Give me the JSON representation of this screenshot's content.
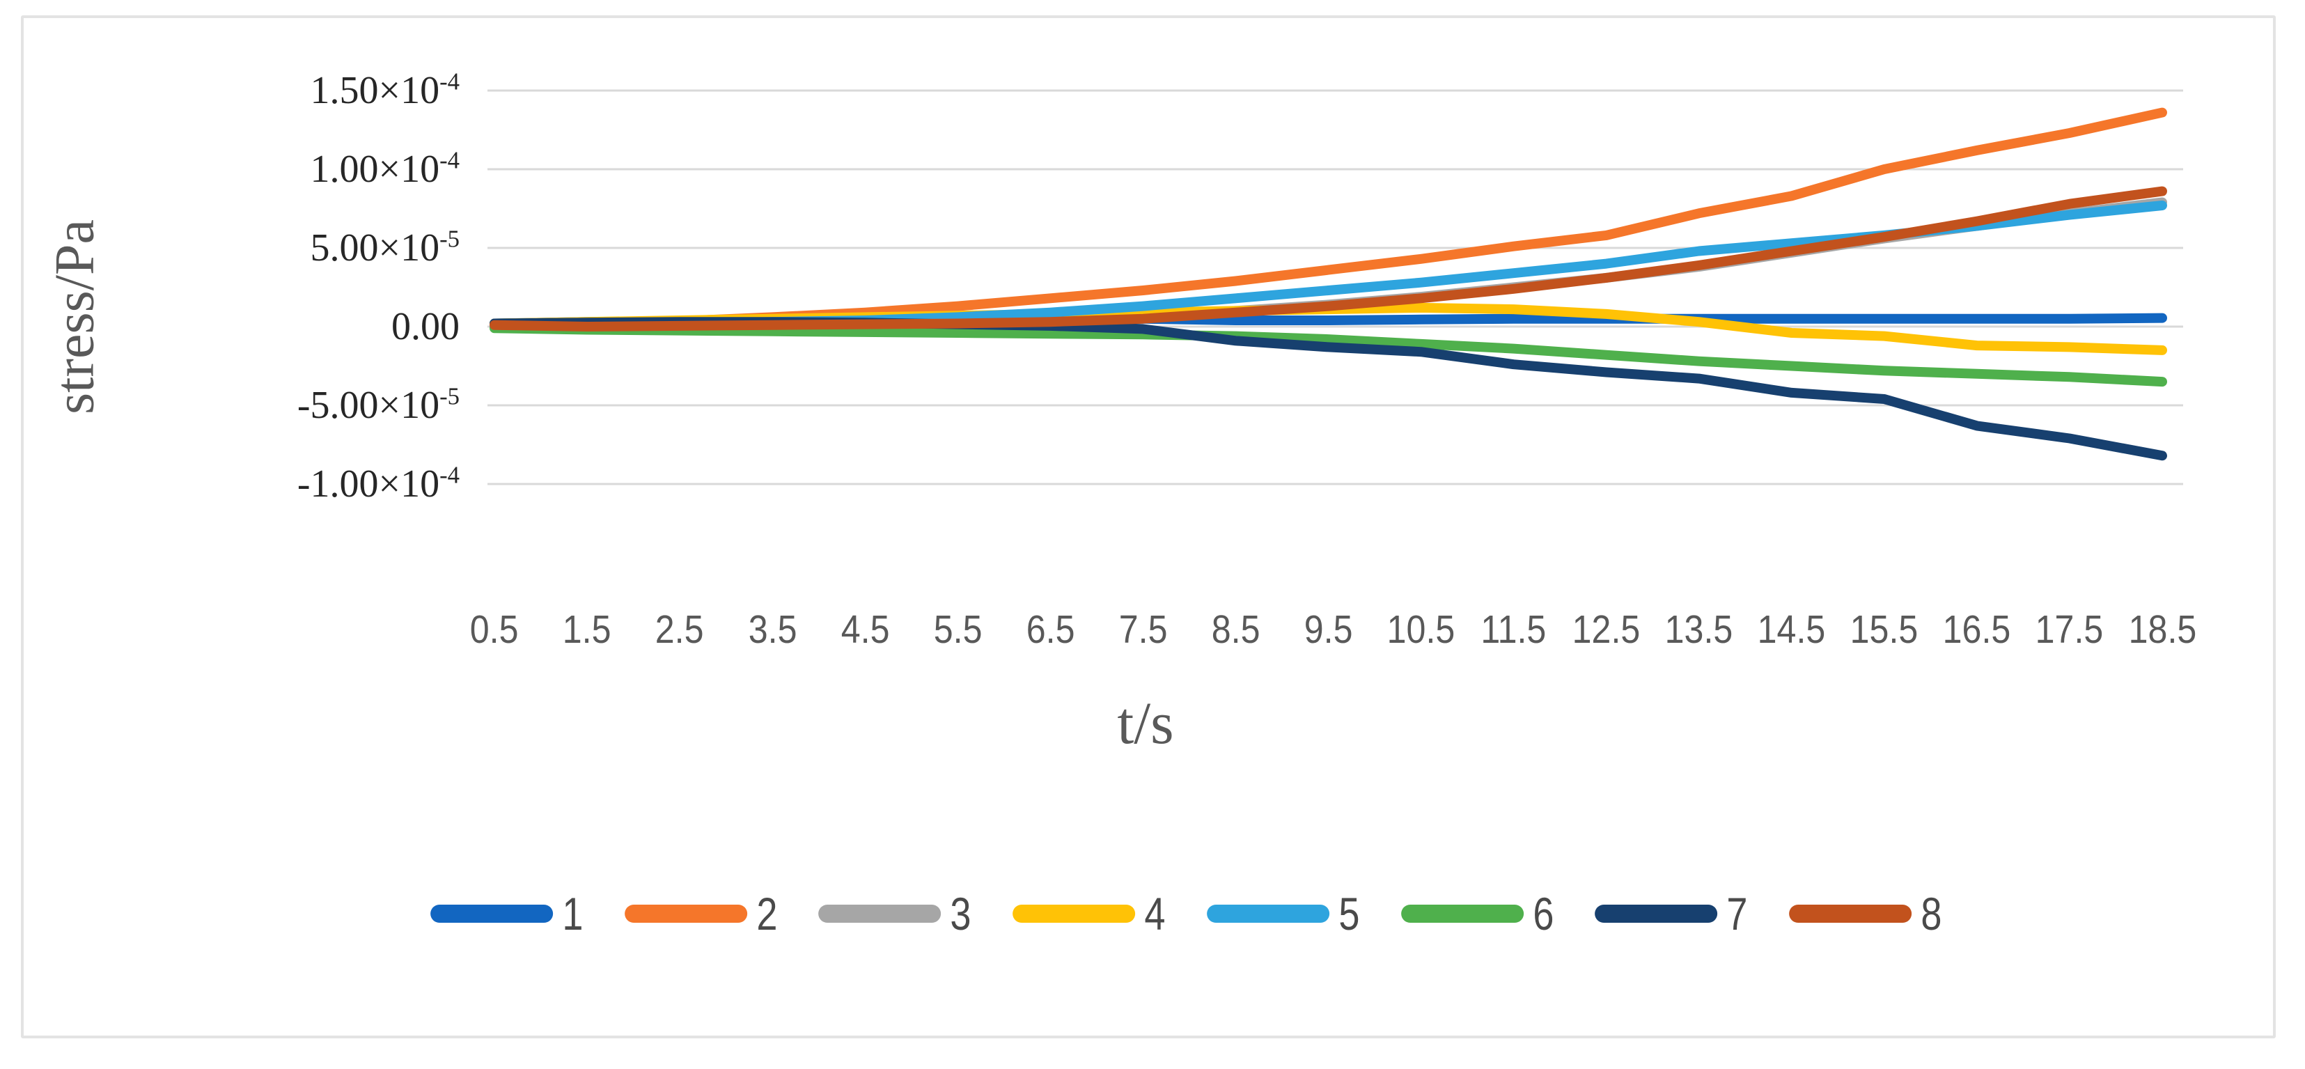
{
  "figure": {
    "background": "#FFFFFF",
    "border_color": "#E3E3E3"
  },
  "axes": {
    "y_title": "stress/Pa",
    "x_title": "t/s",
    "y_ticks": [
      {
        "base": "1.50×10",
        "sup": "-4",
        "value": 0.00015
      },
      {
        "base": "1.00×10",
        "sup": "-4",
        "value": 0.0001
      },
      {
        "base": "5.00×10",
        "sup": "-5",
        "value": 5e-05
      },
      {
        "base": "0.00",
        "sup": "",
        "value": 0
      },
      {
        "base": "-5.00×10",
        "sup": "-5",
        "value": -5e-05
      },
      {
        "base": "-1.00×10",
        "sup": "-4",
        "value": -0.0001
      }
    ],
    "x_tick_labels": [
      "0.5",
      "1.5",
      "2.5",
      "3.5",
      "4.5",
      "5.5",
      "6.5",
      "7.5",
      "8.5",
      "9.5",
      "10.5",
      "11.5",
      "12.5",
      "13.5",
      "14.5",
      "15.5",
      "16.5",
      "17.5",
      "18.5"
    ]
  },
  "legend": {
    "items": [
      {
        "label": "1",
        "color": "#1266C1"
      },
      {
        "label": "2",
        "color": "#F5762A"
      },
      {
        "label": "3",
        "color": "#A6A6A6"
      },
      {
        "label": "4",
        "color": "#FFC206"
      },
      {
        "label": "5",
        "color": "#2EA4DE"
      },
      {
        "label": "6",
        "color": "#4FB04C"
      },
      {
        "label": "7",
        "color": "#17406F"
      },
      {
        "label": "8",
        "color": "#C2521D"
      }
    ]
  },
  "chart_data": {
    "type": "line",
    "title": "",
    "xlabel": "t/s",
    "ylabel": "stress/Pa",
    "unit": "Pa",
    "x": [
      0.5,
      1.5,
      2.5,
      3.5,
      4.5,
      5.5,
      6.5,
      7.5,
      8.5,
      9.5,
      10.5,
      11.5,
      12.5,
      13.5,
      14.5,
      15.5,
      16.5,
      17.5,
      18.5
    ],
    "ylim": [
      -0.0001,
      0.00015
    ],
    "y_gridline_values": [
      0.00015,
      0.0001,
      5e-05,
      0,
      -5e-05,
      -0.0001
    ],
    "grid": "horizontal-only",
    "gridline_color": "#D9D9D9",
    "legend_position": "bottom",
    "series": [
      {
        "name": "1",
        "color": "#1266C1",
        "values": [
          2e-06,
          3e-06,
          3.5e-06,
          4e-06,
          4.5e-06,
          5e-06,
          5e-06,
          5e-06,
          4e-06,
          4e-06,
          4.5e-06,
          5e-06,
          5e-06,
          5e-06,
          5e-06,
          5e-06,
          5e-06,
          5e-06,
          5.5e-06
        ]
      },
      {
        "name": "2",
        "color": "#F5762A",
        "values": [
          0.0,
          1.5e-06,
          3.5e-06,
          6e-06,
          9e-06,
          1.3e-05,
          1.8e-05,
          2.3e-05,
          2.9e-05,
          3.6e-05,
          4.3e-05,
          5.1e-05,
          5.8e-05,
          7.2e-05,
          8.3e-05,
          0.0001,
          0.000112,
          0.000123,
          0.000136
        ]
      },
      {
        "name": "3",
        "color": "#A6A6A6",
        "values": [
          1e-06,
          1.5e-06,
          2e-06,
          2.5e-06,
          3e-06,
          4e-06,
          5e-06,
          7e-06,
          1e-05,
          1.4e-05,
          1.9e-05,
          2.5e-05,
          3.1e-05,
          3.8e-05,
          4.7e-05,
          5.6e-05,
          6.4e-05,
          7.2e-05,
          7.9e-05
        ]
      },
      {
        "name": "4",
        "color": "#FFC206",
        "values": [
          2e-06,
          3e-06,
          4e-06,
          5e-06,
          6e-06,
          7e-06,
          8e-06,
          9e-06,
          1e-05,
          1.1e-05,
          1.2e-05,
          1.1e-05,
          8e-06,
          3e-06,
          -4e-06,
          -6e-06,
          -1.2e-05,
          -1.3e-05,
          -1.5e-05
        ]
      },
      {
        "name": "5",
        "color": "#2EA4DE",
        "values": [
          0.0,
          1e-06,
          2e-06,
          3e-06,
          4e-06,
          6e-06,
          9e-06,
          1.3e-05,
          1.8e-05,
          2.3e-05,
          2.8e-05,
          3.4e-05,
          4e-05,
          4.8e-05,
          5.3e-05,
          5.8e-05,
          6.4e-05,
          7.1e-05,
          7.7e-05
        ]
      },
      {
        "name": "6",
        "color": "#4FB04C",
        "values": [
          -1e-06,
          -2e-06,
          -2.5e-06,
          -3e-06,
          -3.5e-06,
          -4e-06,
          -4.5e-06,
          -5e-06,
          -6e-06,
          -8e-06,
          -1.1e-05,
          -1.4e-05,
          -1.8e-05,
          -2.2e-05,
          -2.5e-05,
          -2.8e-05,
          -3e-05,
          -3.2e-05,
          -3.5e-05
        ]
      },
      {
        "name": "7",
        "color": "#17406F",
        "values": [
          2e-06,
          2.5e-06,
          3e-06,
          3e-06,
          2.5e-06,
          1.5e-06,
          5e-07,
          -1.5e-06,
          -9e-06,
          -1.3e-05,
          -1.6e-05,
          -2.4e-05,
          -2.9e-05,
          -3.3e-05,
          -4.2e-05,
          -4.6e-05,
          -6.3e-05,
          -7.1e-05,
          -8.2e-05
        ]
      },
      {
        "name": "8",
        "color": "#C2521D",
        "values": [
          1e-06,
          0.0,
          5e-07,
          1e-06,
          1.5e-06,
          2e-06,
          3e-06,
          5e-06,
          9e-06,
          1.3e-05,
          1.8e-05,
          2.4e-05,
          3.1e-05,
          3.9e-05,
          4.8e-05,
          5.7e-05,
          6.7e-05,
          7.8e-05,
          8.6e-05
        ]
      }
    ]
  }
}
